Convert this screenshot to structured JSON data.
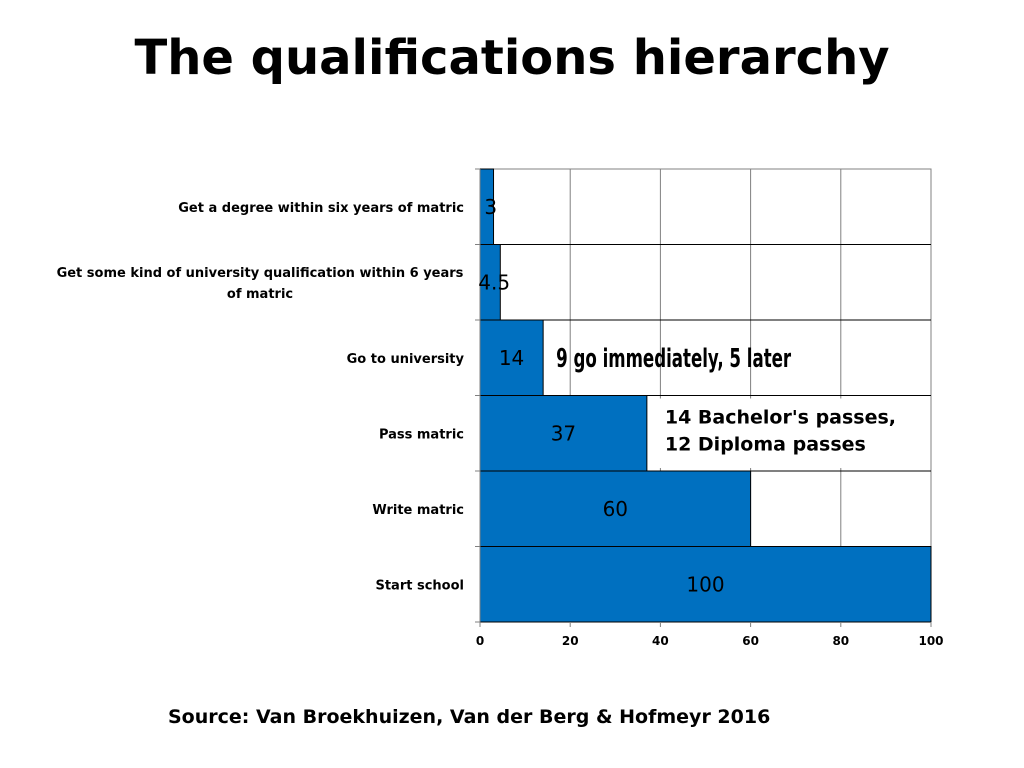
{
  "slide": {
    "title": "The qualifications hierarchy",
    "source": "Source: Van Broekhuizen, Van der Berg & Hofmeyr 2016"
  },
  "colors": {
    "bar": "#0070c0",
    "grid": "#808080",
    "text": "#000000"
  },
  "chart_data": {
    "type": "bar",
    "orientation": "horizontal",
    "categories": [
      "Get a degree within six years of matric",
      "Get some kind of university qualification within 6 years of matric",
      "Go to university",
      "Pass matric",
      "Write matric",
      "Start school"
    ],
    "values": [
      3,
      4.5,
      14,
      37,
      60,
      100
    ],
    "data_labels": [
      "3",
      "4.5",
      "14",
      "37",
      "60",
      "100"
    ],
    "xlim": [
      0,
      100
    ],
    "x_ticks": [
      0,
      20,
      40,
      60,
      80,
      100
    ],
    "grid": true,
    "annotations": [
      {
        "category": "Go to university",
        "lines": [
          "9 go immediately, 5 later"
        ]
      },
      {
        "category": "Pass matric",
        "lines": [
          "14 Bachelor's passes,",
          "12 Diploma passes"
        ]
      }
    ]
  }
}
